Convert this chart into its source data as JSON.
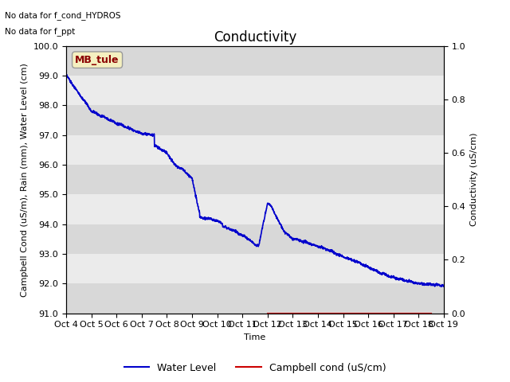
{
  "title": "Conductivity",
  "no_data_text1": "No data for f_cond_HYDROS",
  "no_data_text2": "No data for f_ppt",
  "station_label": "MB_tule",
  "xlabel": "Time",
  "ylabel_left": "Campbell Cond (uS/m), Rain (mm), Water Level (cm)",
  "ylabel_right": "Conductivity (uS/cm)",
  "ylim_left": [
    91.0,
    100.0
  ],
  "ylim_right": [
    0.0,
    1.0
  ],
  "yticks_left": [
    91.0,
    92.0,
    93.0,
    94.0,
    95.0,
    96.0,
    97.0,
    98.0,
    99.0,
    100.0
  ],
  "yticks_right_vals": [
    0.0,
    0.2,
    0.4,
    0.6,
    0.8,
    1.0
  ],
  "yticks_right_pos": [
    91.0,
    92.8,
    94.6,
    96.4,
    98.2,
    100.0
  ],
  "xtick_labels": [
    "Oct 4",
    "Oct 5",
    "Oct 6",
    "Oct 7",
    "Oct 8",
    "Oct 9",
    "Oct 10",
    "Oct 11",
    "Oct 12",
    "Oct 13",
    "Oct 14",
    "Oct 15",
    "Oct 16",
    "Oct 17",
    "Oct 18",
    "Oct 19"
  ],
  "water_level_color": "#0000cc",
  "campbell_cond_color": "#cc0000",
  "legend_entries": [
    "Water Level",
    "Campbell cond (uS/cm)"
  ],
  "bg_color_light": "#ebebeb",
  "bg_color_dark": "#d8d8d8",
  "fig_bg_color": "#ffffff",
  "title_fontsize": 12,
  "axis_fontsize": 8,
  "tick_fontsize": 8,
  "label_box_facecolor": "#f5f0c0",
  "label_box_edgecolor": "#999999",
  "label_text_color": "#8b0000"
}
